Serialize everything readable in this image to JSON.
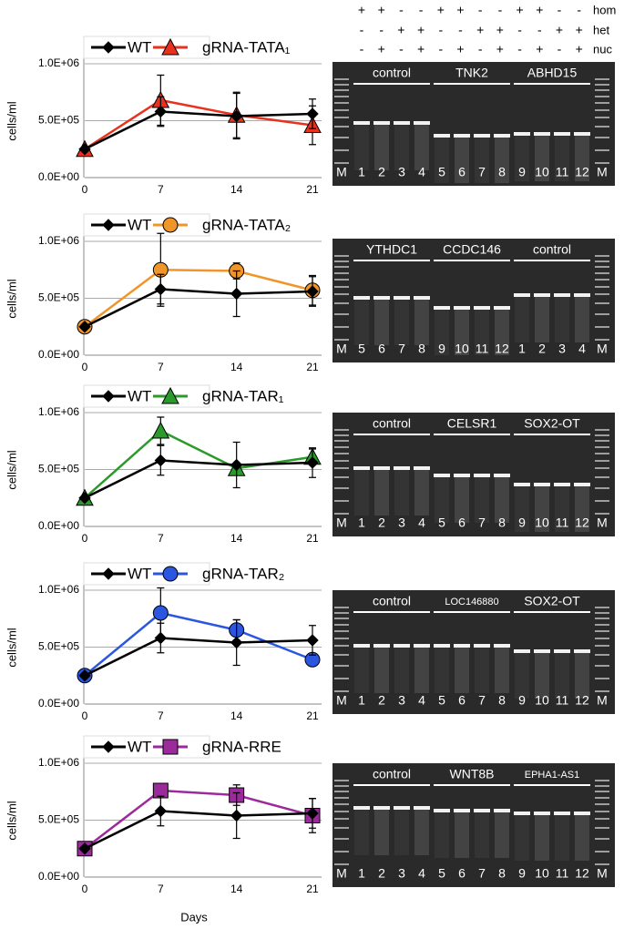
{
  "chart_data": [
    {
      "type": "line",
      "y_label": "cells/ml",
      "x": [
        0,
        7,
        14,
        21
      ],
      "xlim": [
        0,
        21
      ],
      "xticks": [
        0,
        7,
        14,
        21
      ],
      "ylim": [
        0,
        1200000
      ],
      "yticks": [
        {
          "value": 0,
          "label": "0.0E+00"
        },
        {
          "value": 500000,
          "label": "5.0E+05"
        },
        {
          "value": 1000000,
          "label": "1.0E+06"
        }
      ],
      "grid": true,
      "legend": "top",
      "series": [
        {
          "name": "WT",
          "color": "#000000",
          "marker": "diamond",
          "values": [
            250000,
            580000,
            540000,
            560000
          ],
          "errors": [
            0,
            130000,
            200000,
            130000
          ]
        },
        {
          "name": "gRNA-TATA₁",
          "color": "#e8321e",
          "marker": "triangle",
          "values": [
            250000,
            680000,
            550000,
            460000
          ],
          "errors": [
            0,
            220000,
            200000,
            170000
          ]
        }
      ]
    },
    {
      "type": "line",
      "y_label": "cells/ml",
      "x": [
        0,
        7,
        14,
        21
      ],
      "xlim": [
        0,
        21
      ],
      "xticks": [
        0,
        7,
        14,
        21
      ],
      "ylim": [
        0,
        1200000
      ],
      "yticks": [
        {
          "value": 0,
          "label": "0.0E+00"
        },
        {
          "value": 500000,
          "label": "5.0E+05"
        },
        {
          "value": 1000000,
          "label": "1.0E+06"
        }
      ],
      "grid": true,
      "legend": "top",
      "series": [
        {
          "name": "WT",
          "color": "#000000",
          "marker": "diamond",
          "values": [
            250000,
            580000,
            540000,
            560000
          ],
          "errors": [
            0,
            130000,
            200000,
            130000
          ]
        },
        {
          "name": "gRNA-TATA₂",
          "color": "#f0952a",
          "marker": "circle",
          "values": [
            250000,
            750000,
            740000,
            570000
          ],
          "errors": [
            0,
            320000,
            70000,
            130000
          ]
        }
      ]
    },
    {
      "type": "line",
      "y_label": "cells/ml",
      "x": [
        0,
        7,
        14,
        21
      ],
      "xlim": [
        0,
        21
      ],
      "xticks": [
        0,
        7,
        14,
        21
      ],
      "ylim": [
        0,
        1200000
      ],
      "yticks": [
        {
          "value": 0,
          "label": "0.0E+00"
        },
        {
          "value": 500000,
          "label": "5.0E+05"
        },
        {
          "value": 1000000,
          "label": "1.0E+06"
        }
      ],
      "grid": true,
      "legend": "top",
      "series": [
        {
          "name": "WT",
          "color": "#000000",
          "marker": "diamond",
          "values": [
            250000,
            580000,
            540000,
            560000
          ],
          "errors": [
            0,
            130000,
            200000,
            130000
          ]
        },
        {
          "name": "gRNA-TAR₁",
          "color": "#2a9a2a",
          "marker": "triangle",
          "values": [
            250000,
            840000,
            510000,
            610000
          ],
          "errors": [
            0,
            120000,
            0,
            70000
          ]
        }
      ]
    },
    {
      "type": "line",
      "y_label": "cells/ml",
      "x": [
        0,
        7,
        14,
        21
      ],
      "xlim": [
        0,
        21
      ],
      "xticks": [
        0,
        7,
        14,
        21
      ],
      "ylim": [
        0,
        1200000
      ],
      "yticks": [
        {
          "value": 0,
          "label": "0.0E+00"
        },
        {
          "value": 500000,
          "label": "5.0E+05"
        },
        {
          "value": 1000000,
          "label": "1.0E+06"
        }
      ],
      "grid": true,
      "legend": "top",
      "series": [
        {
          "name": "WT",
          "color": "#000000",
          "marker": "diamond",
          "values": [
            250000,
            580000,
            540000,
            560000
          ],
          "errors": [
            0,
            130000,
            200000,
            130000
          ]
        },
        {
          "name": "gRNA-TAR₂",
          "color": "#2b56e0",
          "marker": "circle",
          "values": [
            250000,
            800000,
            650000,
            390000
          ],
          "errors": [
            0,
            220000,
            90000,
            0
          ]
        }
      ]
    },
    {
      "type": "line",
      "y_label": "cells/ml",
      "x_label": "Days",
      "x": [
        0,
        7,
        14,
        21
      ],
      "xlim": [
        0,
        21
      ],
      "xticks": [
        0,
        7,
        14,
        21
      ],
      "ylim": [
        0,
        1200000
      ],
      "yticks": [
        {
          "value": 0,
          "label": "0.0E+00"
        },
        {
          "value": 500000,
          "label": "5.0E+05"
        },
        {
          "value": 1000000,
          "label": "1.0E+06"
        }
      ],
      "grid": true,
      "legend": "top",
      "series": [
        {
          "name": "WT",
          "color": "#000000",
          "marker": "diamond",
          "values": [
            250000,
            580000,
            540000,
            560000
          ],
          "errors": [
            0,
            130000,
            200000,
            130000
          ]
        },
        {
          "name": "gRNA-RRE",
          "color": "#9b2a9b",
          "marker": "square",
          "values": [
            250000,
            760000,
            720000,
            540000
          ],
          "errors": [
            0,
            0,
            90000,
            150000
          ]
        }
      ]
    }
  ],
  "header": {
    "rows": [
      {
        "label": "hom",
        "signs": [
          "+",
          "+",
          "-",
          "-",
          "+",
          "+",
          "-",
          "-",
          "+",
          "+",
          "-",
          "-"
        ]
      },
      {
        "label": "het",
        "signs": [
          "-",
          "-",
          "+",
          "+",
          "-",
          "-",
          "+",
          "+",
          "-",
          "-",
          "+",
          "+"
        ]
      },
      {
        "label": "nuc",
        "signs": [
          "-",
          "+",
          "-",
          "+",
          "-",
          "+",
          "-",
          "+",
          "-",
          "+",
          "-",
          "+"
        ]
      }
    ]
  },
  "gels": [
    {
      "groups": [
        "control",
        "TNK2",
        "ABHD15"
      ],
      "lanes": [
        "M",
        "1",
        "2",
        "3",
        "4",
        "5",
        "6",
        "7",
        "8",
        "9",
        "10",
        "11",
        "12",
        "M"
      ]
    },
    {
      "groups": [
        "YTHDC1",
        "CCDC146",
        "control"
      ],
      "lanes": [
        "M",
        "5",
        "6",
        "7",
        "8",
        "9",
        "10",
        "11",
        "12",
        "1",
        "2",
        "3",
        "4",
        "M"
      ]
    },
    {
      "groups": [
        "control",
        "CELSR1",
        "SOX2-OT"
      ],
      "lanes": [
        "M",
        "1",
        "2",
        "3",
        "4",
        "5",
        "6",
        "7",
        "8",
        "9",
        "10",
        "11",
        "12",
        "M"
      ]
    },
    {
      "groups": [
        "control",
        "LOC146880",
        "SOX2-OT"
      ],
      "lanes": [
        "M",
        "1",
        "2",
        "3",
        "4",
        "5",
        "6",
        "7",
        "8",
        "9",
        "10",
        "11",
        "12",
        "M"
      ]
    },
    {
      "groups": [
        "control",
        "WNT8B",
        "EPHA1-AS1"
      ],
      "lanes": [
        "M",
        "1",
        "2",
        "3",
        "4",
        "5",
        "6",
        "7",
        "8",
        "9",
        "10",
        "11",
        "12",
        "M"
      ]
    }
  ]
}
